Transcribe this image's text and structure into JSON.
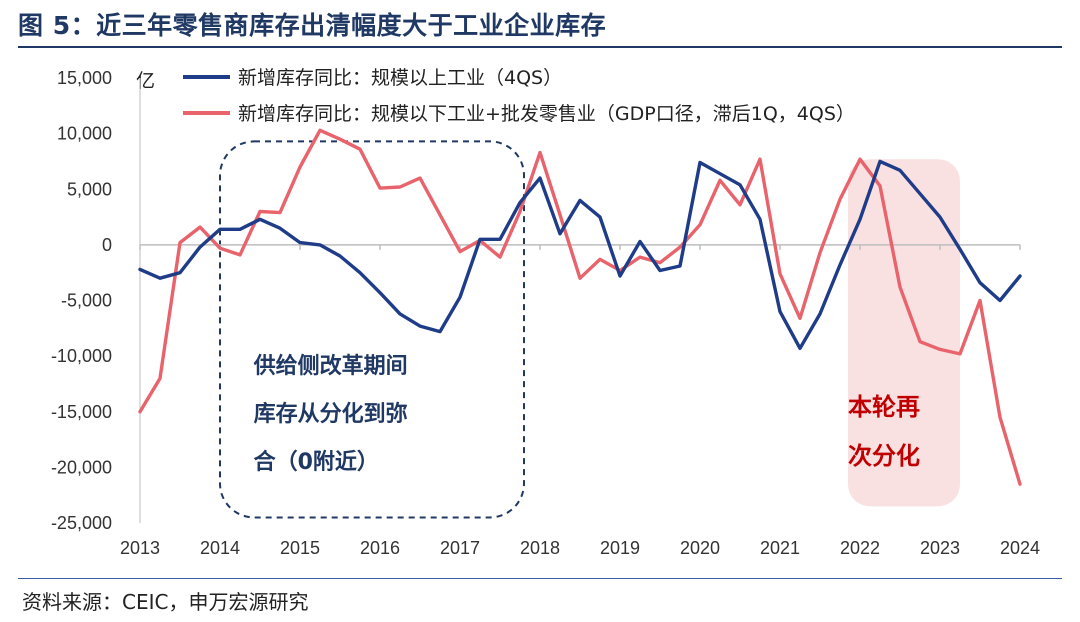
{
  "header": {
    "title": "图 5：近三年零售商库存出清幅度大于工业企业库存"
  },
  "footer": {
    "source": "资料来源：CEIC，申万宏源研究"
  },
  "chart_data": {
    "type": "line",
    "unit": "亿",
    "ylim": [
      -25000,
      15000
    ],
    "yticks": [
      15000,
      10000,
      5000,
      0,
      -5000,
      -10000,
      -15000,
      -20000,
      -25000
    ],
    "ytick_labels": [
      "15,000",
      "10,000",
      "5,000",
      "0",
      "-5,000",
      "-10,000",
      "-15,000",
      "-20,000",
      "-25,000"
    ],
    "xlim": [
      2013,
      2024
    ],
    "xticks": [
      2013,
      2014,
      2015,
      2016,
      2017,
      2018,
      2019,
      2020,
      2021,
      2022,
      2023,
      2024
    ],
    "xtick_labels": [
      "2013",
      "2014",
      "2015",
      "2016",
      "2017",
      "2018",
      "2019",
      "2020",
      "2021",
      "2022",
      "2023",
      "2024"
    ],
    "series": [
      {
        "name": "新增库存同比：规模以上工业（4QS）",
        "color": "#1f3c88",
        "points": [
          [
            2013.0,
            -2200
          ],
          [
            2013.25,
            -3000
          ],
          [
            2013.5,
            -2500
          ],
          [
            2013.75,
            -200
          ],
          [
            2014.0,
            1400
          ],
          [
            2014.25,
            1400
          ],
          [
            2014.5,
            2300
          ],
          [
            2014.75,
            1500
          ],
          [
            2015.0,
            200
          ],
          [
            2015.25,
            0
          ],
          [
            2015.5,
            -1000
          ],
          [
            2015.75,
            -2500
          ],
          [
            2016.0,
            -4300
          ],
          [
            2016.25,
            -6200
          ],
          [
            2016.5,
            -7300
          ],
          [
            2016.75,
            -7800
          ],
          [
            2017.0,
            -4700
          ],
          [
            2017.25,
            500
          ],
          [
            2017.5,
            500
          ],
          [
            2017.75,
            3800
          ],
          [
            2018.0,
            6000
          ],
          [
            2018.25,
            1000
          ],
          [
            2018.5,
            4000
          ],
          [
            2018.75,
            2500
          ],
          [
            2019.0,
            -2800
          ],
          [
            2019.25,
            300
          ],
          [
            2019.5,
            -2300
          ],
          [
            2019.75,
            -1900
          ],
          [
            2020.0,
            7400
          ],
          [
            2020.25,
            6400
          ],
          [
            2020.5,
            5400
          ],
          [
            2020.75,
            2300
          ],
          [
            2021.0,
            -6000
          ],
          [
            2021.25,
            -9300
          ],
          [
            2021.5,
            -6200
          ],
          [
            2021.75,
            -1800
          ],
          [
            2022.0,
            2300
          ],
          [
            2022.25,
            7500
          ],
          [
            2022.5,
            6700
          ],
          [
            2022.75,
            4600
          ],
          [
            2023.0,
            2500
          ],
          [
            2023.25,
            -400
          ],
          [
            2023.5,
            -3400
          ],
          [
            2023.75,
            -5000
          ],
          [
            2024.0,
            -2800
          ]
        ]
      },
      {
        "name": "新增库存同比：规模以下工业+批发零售业（GDP口径，滞后1Q，4QS）",
        "color": "#e8636b",
        "points": [
          [
            2013.0,
            -15000
          ],
          [
            2013.25,
            -12000
          ],
          [
            2013.5,
            200
          ],
          [
            2013.75,
            1600
          ],
          [
            2014.0,
            -300
          ],
          [
            2014.25,
            -900
          ],
          [
            2014.5,
            3000
          ],
          [
            2014.75,
            2900
          ],
          [
            2015.0,
            7000
          ],
          [
            2015.25,
            10300
          ],
          [
            2015.5,
            9500
          ],
          [
            2015.75,
            8600
          ],
          [
            2016.0,
            5100
          ],
          [
            2016.25,
            5200
          ],
          [
            2016.5,
            6000
          ],
          [
            2016.75,
            2700
          ],
          [
            2017.0,
            -600
          ],
          [
            2017.25,
            400
          ],
          [
            2017.5,
            -1100
          ],
          [
            2017.75,
            3000
          ],
          [
            2018.0,
            8300
          ],
          [
            2018.25,
            2700
          ],
          [
            2018.5,
            -3000
          ],
          [
            2018.75,
            -1300
          ],
          [
            2019.0,
            -2300
          ],
          [
            2019.25,
            -1100
          ],
          [
            2019.5,
            -1600
          ],
          [
            2019.75,
            -200
          ],
          [
            2020.0,
            1800
          ],
          [
            2020.25,
            5800
          ],
          [
            2020.5,
            3600
          ],
          [
            2020.75,
            7700
          ],
          [
            2021.0,
            -2600
          ],
          [
            2021.25,
            -6600
          ],
          [
            2021.5,
            -700
          ],
          [
            2021.75,
            4100
          ],
          [
            2022.0,
            7700
          ],
          [
            2022.25,
            5300
          ],
          [
            2022.5,
            -3800
          ],
          [
            2022.75,
            -8700
          ],
          [
            2023.0,
            -9400
          ],
          [
            2023.25,
            -9800
          ],
          [
            2023.5,
            -5000
          ],
          [
            2023.75,
            -15500
          ],
          [
            2024.0,
            -21500
          ]
        ]
      }
    ],
    "annotations": {
      "supply_reform": {
        "lines": [
          "供给侧改革期间",
          "库存从分化到弥",
          "合（0附近）"
        ],
        "color": "#1f3864",
        "style": "dashed box"
      },
      "divergence": {
        "lines": [
          "本轮再",
          "次分化"
        ],
        "color": "#c00000",
        "style": "shaded box"
      }
    },
    "legend": {
      "placement": "top"
    }
  }
}
